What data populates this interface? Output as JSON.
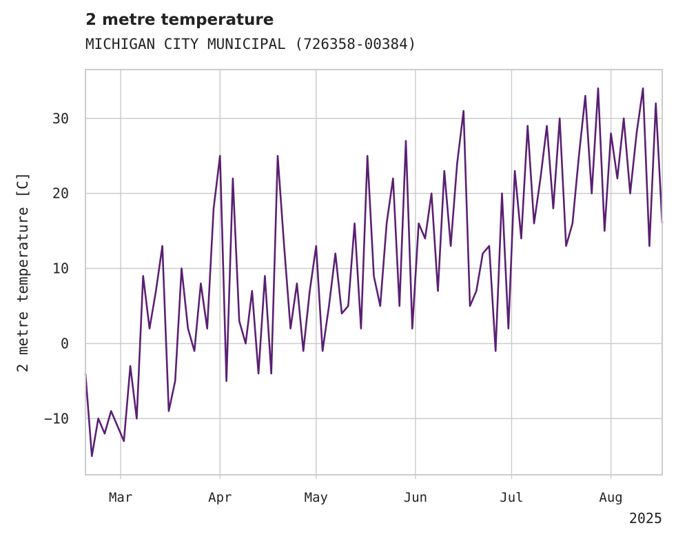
{
  "chart_data": {
    "type": "line",
    "title": "2 metre temperature",
    "subtitle": "MICHIGAN CITY MUNICIPAL (726358-00384)",
    "xlabel": "",
    "ylabel": "2 metre temperature [C]",
    "x_tick_labels": [
      "Mar",
      "Apr",
      "May",
      "Jun",
      "Jul",
      "Aug"
    ],
    "year_label": "2025",
    "y_ticks": [
      -10,
      0,
      10,
      20,
      30
    ],
    "xlim": [
      "2025-02-18",
      "2025-08-17"
    ],
    "ylim": [
      -17.5,
      36.5
    ],
    "grid": true,
    "line_color": "#5a1f73",
    "grid_color": "#cccccc",
    "axis_color": "#cccccc",
    "x": [
      "2025-02-18",
      "2025-02-20",
      "2025-02-22",
      "2025-02-24",
      "2025-02-26",
      "2025-02-28",
      "2025-03-02",
      "2025-03-04",
      "2025-03-06",
      "2025-03-08",
      "2025-03-10",
      "2025-03-12",
      "2025-03-14",
      "2025-03-16",
      "2025-03-18",
      "2025-03-20",
      "2025-03-22",
      "2025-03-24",
      "2025-03-26",
      "2025-03-28",
      "2025-03-30",
      "2025-04-01",
      "2025-04-03",
      "2025-04-05",
      "2025-04-07",
      "2025-04-09",
      "2025-04-11",
      "2025-04-13",
      "2025-04-15",
      "2025-04-17",
      "2025-04-19",
      "2025-04-21",
      "2025-04-23",
      "2025-04-25",
      "2025-04-27",
      "2025-04-29",
      "2025-05-01",
      "2025-05-03",
      "2025-05-05",
      "2025-05-07",
      "2025-05-09",
      "2025-05-11",
      "2025-05-13",
      "2025-05-15",
      "2025-05-17",
      "2025-05-19",
      "2025-05-21",
      "2025-05-23",
      "2025-05-25",
      "2025-05-27",
      "2025-05-29",
      "2025-05-31",
      "2025-06-02",
      "2025-06-04",
      "2025-06-06",
      "2025-06-08",
      "2025-06-10",
      "2025-06-12",
      "2025-06-14",
      "2025-06-16",
      "2025-06-18",
      "2025-06-20",
      "2025-06-22",
      "2025-06-24",
      "2025-06-26",
      "2025-06-28",
      "2025-06-30",
      "2025-07-02",
      "2025-07-04",
      "2025-07-06",
      "2025-07-08",
      "2025-07-10",
      "2025-07-12",
      "2025-07-14",
      "2025-07-16",
      "2025-07-18",
      "2025-07-20",
      "2025-07-22",
      "2025-07-24",
      "2025-07-26",
      "2025-07-28",
      "2025-07-30",
      "2025-08-01",
      "2025-08-03",
      "2025-08-05",
      "2025-08-07",
      "2025-08-09",
      "2025-08-11",
      "2025-08-13",
      "2025-08-15",
      "2025-08-17"
    ],
    "series": [
      {
        "values": [
          -4,
          -15,
          -10,
          -12,
          -9,
          -11,
          -13,
          -3,
          -10,
          9,
          2,
          7,
          13,
          -9,
          -5,
          10,
          2,
          -1,
          8,
          2,
          18,
          25,
          -5,
          22,
          3,
          0,
          7,
          -4,
          9,
          -4,
          25,
          13,
          2,
          8,
          -1,
          7,
          13,
          -1,
          5,
          12,
          4,
          5,
          16,
          2,
          25,
          9,
          5,
          16,
          22,
          5,
          27,
          2,
          16,
          14,
          20,
          7,
          23,
          13,
          24,
          31,
          5,
          7,
          12,
          13,
          -1,
          20,
          2,
          23,
          14,
          29,
          16,
          22,
          29,
          18,
          30,
          13,
          16,
          25,
          33,
          20,
          34,
          15,
          28,
          22,
          30,
          20,
          28,
          34,
          13,
          32,
          16
        ]
      }
    ]
  }
}
